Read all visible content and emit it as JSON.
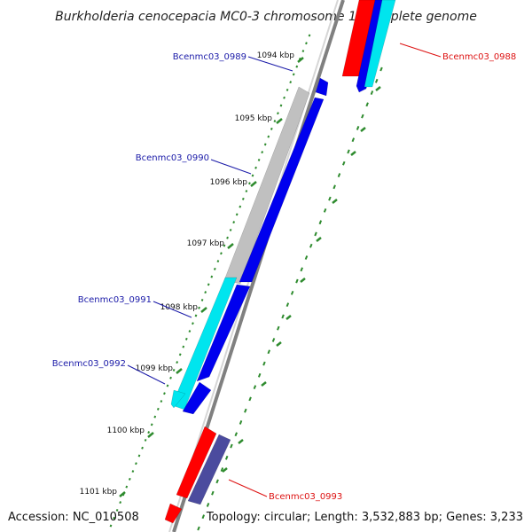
{
  "title": "Burkholderia cenocepacia MC0-3 chromosome 1, complete genome",
  "footer": {
    "accession": "Accession: NC_010508",
    "summary": "Topology: circular; Length: 3,532,883 bp; Genes: 3,233"
  },
  "colors": {
    "backbone": "#808080",
    "tick": "#2e8b2e",
    "forward_label": "#1a1aa8",
    "reverse_label": "#dd1111",
    "red": "#ff0000",
    "blue": "#0000ee",
    "cyan": "#00e5ee",
    "gray": "#c0c0c0",
    "slate": "#4b4b9e"
  },
  "kbp_ticks": [
    {
      "kb": 1094,
      "label": "1094 kbp"
    },
    {
      "kb": 1095,
      "label": "1095 kbp"
    },
    {
      "kb": 1096,
      "label": "1096 kbp"
    },
    {
      "kb": 1097,
      "label": "1097 kbp"
    },
    {
      "kb": 1098,
      "label": "1098 kbp"
    },
    {
      "kb": 1099,
      "label": "1099 kbp"
    },
    {
      "kb": 1100,
      "label": "1100 kbp"
    },
    {
      "kb": 1101,
      "label": "1101 kbp"
    }
  ],
  "gene_labels": [
    {
      "name": "Bcenmc03_0988",
      "side": "right",
      "color": "red"
    },
    {
      "name": "Bcenmc03_0989",
      "side": "left",
      "color": "forward"
    },
    {
      "name": "Bcenmc03_0990",
      "side": "left",
      "color": "forward"
    },
    {
      "name": "Bcenmc03_0991",
      "side": "left",
      "color": "forward"
    },
    {
      "name": "Bcenmc03_0992",
      "side": "left",
      "color": "forward"
    },
    {
      "name": "Bcenmc03_0993",
      "side": "right",
      "color": "red"
    }
  ],
  "features": [
    {
      "id": "cds-0988-red",
      "color": "red"
    },
    {
      "id": "cds-0988-blue",
      "color": "blue"
    },
    {
      "id": "cds-0988-cyan",
      "color": "cyan"
    },
    {
      "id": "cds-0989-blue",
      "color": "blue"
    },
    {
      "id": "cds-0990-gray",
      "color": "gray"
    },
    {
      "id": "cds-0990-blue",
      "color": "blue"
    },
    {
      "id": "cds-0991-cyan",
      "color": "cyan"
    },
    {
      "id": "cds-0991-blue",
      "color": "blue"
    },
    {
      "id": "cds-0992-cyan",
      "color": "cyan"
    },
    {
      "id": "cds-0992-blue",
      "color": "blue"
    },
    {
      "id": "cds-0993-red",
      "color": "red"
    },
    {
      "id": "cds-0993-slate",
      "color": "slate"
    },
    {
      "id": "cds-0994-red",
      "color": "red"
    }
  ]
}
